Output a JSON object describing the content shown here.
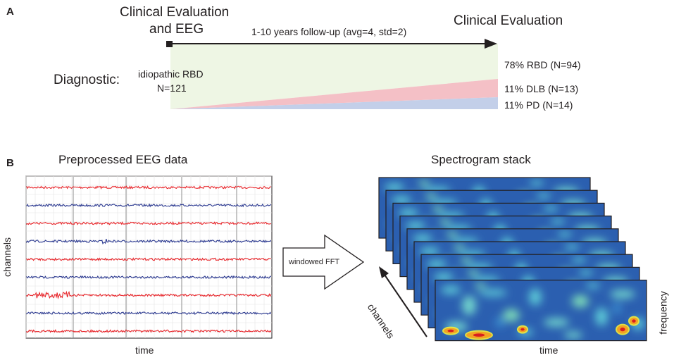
{
  "panel_a": {
    "label": "A",
    "start_title_line1": "Clinical Evaluation",
    "start_title_line2": "and EEG",
    "end_title": "Clinical Evaluation",
    "followup": "1-10 years follow-up  (avg=4, std=2)",
    "diagnostic_label": "Diagnostic:",
    "cohort_line1": "idiopathic RBD",
    "cohort_line2": "N=121",
    "outcomes": [
      {
        "label": "78% RBD (N=94)",
        "fraction": 0.78,
        "color": "#eef6e4"
      },
      {
        "label": "11% DLB (N=13)",
        "fraction": 0.11,
        "color": "#f2b8c0"
      },
      {
        "label": "11% PD  (N=14)",
        "fraction": 0.11,
        "color": "#b8c6e6"
      }
    ]
  },
  "panel_b": {
    "label": "B",
    "eeg_title": "Preprocessed EEG data",
    "channels_label": "channels",
    "time_label": "time",
    "arrow_label": "windowed FFT",
    "spectrogram_title": "Spectrogram stack",
    "stack_channels_label": "channels",
    "stack_time_label": "time",
    "frequency_label": "frequency",
    "trace_colors": [
      "#e8262b",
      "#2b3990"
    ],
    "trace_count": 9,
    "stack_count": 9
  }
}
